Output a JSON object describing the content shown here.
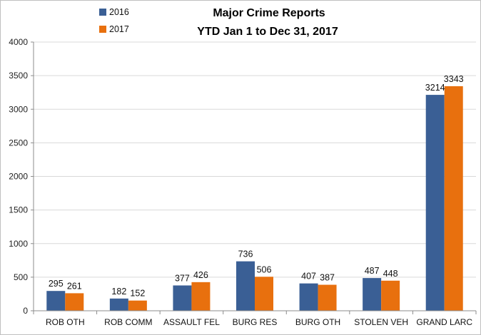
{
  "chart_data": {
    "type": "bar",
    "title": "Major Crime Reports",
    "subtitle": "YTD Jan 1 to Dec 31, 2017",
    "xlabel": "",
    "ylabel": "",
    "ylim": [
      0,
      4000
    ],
    "yticks": [
      0,
      500,
      1000,
      1500,
      2000,
      2500,
      3000,
      3500,
      4000
    ],
    "grid": true,
    "legend_position": "top-left",
    "categories": [
      "ROB OTH",
      "ROB COMM",
      "ASSAULT FEL",
      "BURG RES",
      "BURG OTH",
      "STOLEN VEH",
      "GRAND LARC"
    ],
    "series": [
      {
        "name": "2016",
        "color": "#3A5F95",
        "values": [
          295,
          182,
          377,
          736,
          407,
          487,
          3214
        ]
      },
      {
        "name": "2017",
        "color": "#E8700E",
        "values": [
          261,
          152,
          426,
          506,
          387,
          448,
          3343
        ]
      }
    ]
  }
}
